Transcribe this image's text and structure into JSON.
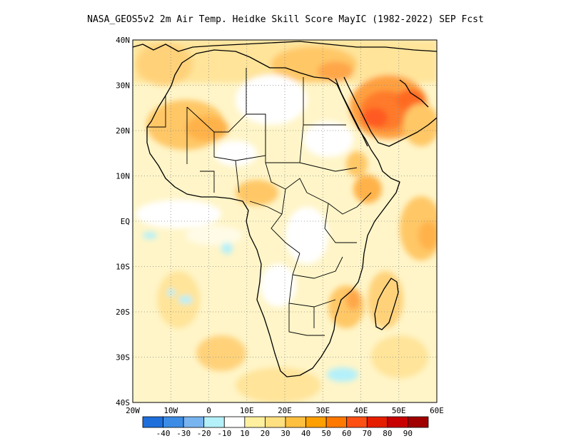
{
  "title": "NASA_GEOS5v2 2m Air Temp. Heidke Skill Score MayIC (1982-2022) SEP Fcst",
  "map": {
    "lon_labels": [
      "20W",
      "10W",
      "0",
      "10E",
      "20E",
      "30E",
      "40E",
      "50E",
      "60E"
    ],
    "lat_labels": [
      "40N",
      "30N",
      "20N",
      "10N",
      "EQ",
      "10S",
      "20S",
      "30S",
      "40S"
    ],
    "gridlines": "dotted"
  },
  "colorbar": {
    "colors": [
      "#1e6fdc",
      "#3c8ce6",
      "#78b4f0",
      "#b4f0fa",
      "#ffffff",
      "#fff0a0",
      "#ffe080",
      "#ffc040",
      "#ffa000",
      "#ff7800",
      "#ff5014",
      "#e61e00",
      "#c80000",
      "#a00000"
    ],
    "labels": [
      "-40",
      "-30",
      "-20",
      "-10",
      "10",
      "20",
      "30",
      "40",
      "50",
      "60",
      "70",
      "80",
      "90"
    ]
  }
}
